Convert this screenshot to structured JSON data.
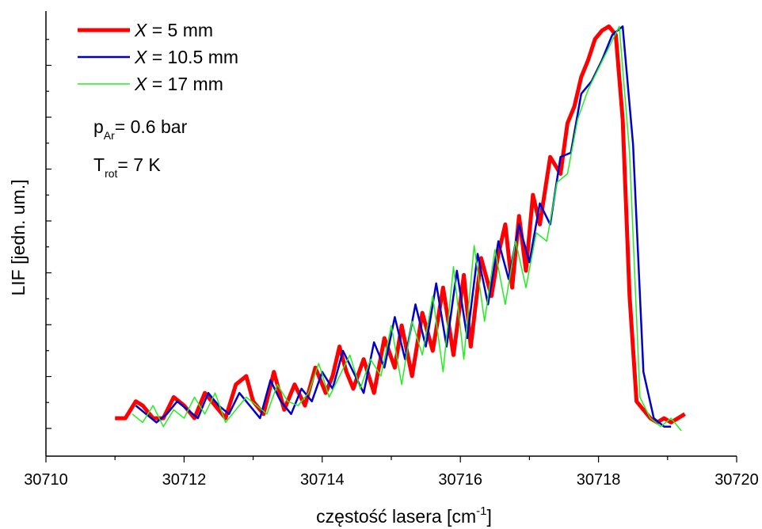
{
  "chart_data": {
    "type": "line",
    "xlabel": "częstość lasera [cm",
    "xlabel_sup": "-1",
    "xlabel_end": "]",
    "ylabel": "LIF [jedn. um.]",
    "xlim": [
      30710,
      30720
    ],
    "ylim": [
      0,
      1
    ],
    "x_ticks": [
      30710,
      30712,
      30714,
      30716,
      30718,
      30720
    ],
    "x_tick_labels": [
      "30710",
      "30712",
      "30714",
      "30716",
      "30718",
      "30720"
    ],
    "y_tick_labels_shown": false,
    "grid": false,
    "legend_position": "top-left",
    "annotations": [
      {
        "main": "p",
        "sub": "Ar",
        "rest": "= 0.6 bar"
      },
      {
        "main": "T",
        "sub": "rot",
        "rest": "= 7 K"
      }
    ],
    "series": [
      {
        "name": "X = 5 mm",
        "legend_var": "X",
        "legend_rest": " = 5 mm",
        "color": "#ff0000",
        "x": [
          30711.0,
          30711.15,
          30711.3,
          30711.4,
          30711.55,
          30711.7,
          30711.85,
          30712.0,
          30712.15,
          30712.3,
          30712.45,
          30712.6,
          30712.75,
          30712.9,
          30713.0,
          30713.15,
          30713.3,
          30713.45,
          30713.6,
          30713.75,
          30713.9,
          30714.05,
          30714.15,
          30714.25,
          30714.35,
          30714.45,
          30714.6,
          30714.75,
          30714.9,
          30715.05,
          30715.15,
          30715.3,
          30715.45,
          30715.6,
          30715.75,
          30715.9,
          30716.05,
          30716.15,
          30716.3,
          30716.45,
          30716.55,
          30716.65,
          30716.75,
          30716.85,
          30716.95,
          30717.05,
          30717.15,
          30717.3,
          30717.45,
          30717.55,
          30717.65,
          30717.75,
          30717.85,
          30717.95,
          30718.05,
          30718.15,
          30718.25,
          30718.35,
          30718.45,
          30718.55,
          30718.65,
          30718.75,
          30718.85,
          30718.95,
          30719.05,
          30719.15,
          30719.25
        ],
        "y": [
          0.06,
          0.06,
          0.1,
          0.09,
          0.06,
          0.06,
          0.11,
          0.09,
          0.06,
          0.12,
          0.09,
          0.06,
          0.14,
          0.16,
          0.1,
          0.07,
          0.17,
          0.08,
          0.14,
          0.09,
          0.18,
          0.12,
          0.16,
          0.23,
          0.17,
          0.13,
          0.2,
          0.12,
          0.25,
          0.18,
          0.28,
          0.16,
          0.31,
          0.22,
          0.37,
          0.21,
          0.4,
          0.23,
          0.44,
          0.35,
          0.45,
          0.52,
          0.37,
          0.54,
          0.41,
          0.59,
          0.52,
          0.68,
          0.64,
          0.76,
          0.8,
          0.87,
          0.91,
          0.96,
          0.98,
          0.99,
          0.97,
          0.77,
          0.35,
          0.1,
          0.08,
          0.06,
          0.05,
          0.06,
          0.05,
          0.06,
          0.07
        ]
      },
      {
        "name": "X = 10.5 mm",
        "legend_var": "X",
        "legend_rest": " = 10.5 mm",
        "color": "#0000cc",
        "x": [
          30711.3,
          30711.45,
          30711.6,
          30711.75,
          30711.9,
          30712.05,
          30712.2,
          30712.35,
          30712.5,
          30712.65,
          30712.8,
          30712.95,
          30713.1,
          30713.25,
          30713.4,
          30713.55,
          30713.7,
          30713.85,
          30714.0,
          30714.15,
          30714.3,
          30714.45,
          30714.6,
          30714.75,
          30714.9,
          30715.05,
          30715.2,
          30715.35,
          30715.5,
          30715.65,
          30715.8,
          30715.95,
          30716.1,
          30716.25,
          30716.4,
          30716.55,
          30716.7,
          30716.85,
          30717.0,
          30717.15,
          30717.3,
          30717.45,
          30717.6,
          30717.75,
          30717.9,
          30718.05,
          30718.2,
          30718.35,
          30718.5,
          30718.65,
          30718.8,
          30718.95,
          30719.05
        ],
        "y": [
          0.09,
          0.07,
          0.05,
          0.07,
          0.1,
          0.08,
          0.06,
          0.12,
          0.09,
          0.07,
          0.12,
          0.09,
          0.06,
          0.15,
          0.1,
          0.07,
          0.13,
          0.1,
          0.17,
          0.13,
          0.22,
          0.17,
          0.12,
          0.24,
          0.18,
          0.3,
          0.2,
          0.33,
          0.23,
          0.38,
          0.23,
          0.41,
          0.25,
          0.45,
          0.33,
          0.48,
          0.39,
          0.52,
          0.43,
          0.57,
          0.52,
          0.68,
          0.69,
          0.83,
          0.86,
          0.91,
          0.97,
          0.99,
          0.71,
          0.17,
          0.06,
          0.04,
          0.04
        ]
      },
      {
        "name": "X = 17 mm",
        "legend_var": "X",
        "legend_rest": " = 17 mm",
        "color": "#22ee22",
        "x": [
          30711.25,
          30711.4,
          30711.55,
          30711.7,
          30711.85,
          30712.0,
          30712.15,
          30712.3,
          30712.45,
          30712.6,
          30712.75,
          30712.9,
          30713.05,
          30713.2,
          30713.35,
          30713.5,
          30713.65,
          30713.8,
          30713.95,
          30714.1,
          30714.25,
          30714.4,
          30714.55,
          30714.7,
          30714.85,
          30715.0,
          30715.15,
          30715.3,
          30715.45,
          30715.6,
          30715.75,
          30715.9,
          30716.05,
          30716.2,
          30716.35,
          30716.5,
          30716.65,
          30716.8,
          30716.95,
          30717.1,
          30717.25,
          30717.4,
          30717.55,
          30717.7,
          30717.85,
          30718.0,
          30718.15,
          30718.3,
          30718.45,
          30718.6,
          30718.75,
          30718.9,
          30719.05,
          30719.2
        ],
        "y": [
          0.07,
          0.05,
          0.09,
          0.04,
          0.08,
          0.06,
          0.11,
          0.07,
          0.12,
          0.05,
          0.08,
          0.11,
          0.09,
          0.07,
          0.14,
          0.1,
          0.09,
          0.12,
          0.19,
          0.11,
          0.16,
          0.21,
          0.13,
          0.2,
          0.16,
          0.28,
          0.14,
          0.29,
          0.21,
          0.35,
          0.17,
          0.42,
          0.2,
          0.47,
          0.29,
          0.46,
          0.33,
          0.48,
          0.37,
          0.5,
          0.48,
          0.62,
          0.64,
          0.77,
          0.84,
          0.89,
          0.94,
          0.99,
          0.69,
          0.11,
          0.06,
          0.04,
          0.06,
          0.03
        ]
      }
    ]
  }
}
